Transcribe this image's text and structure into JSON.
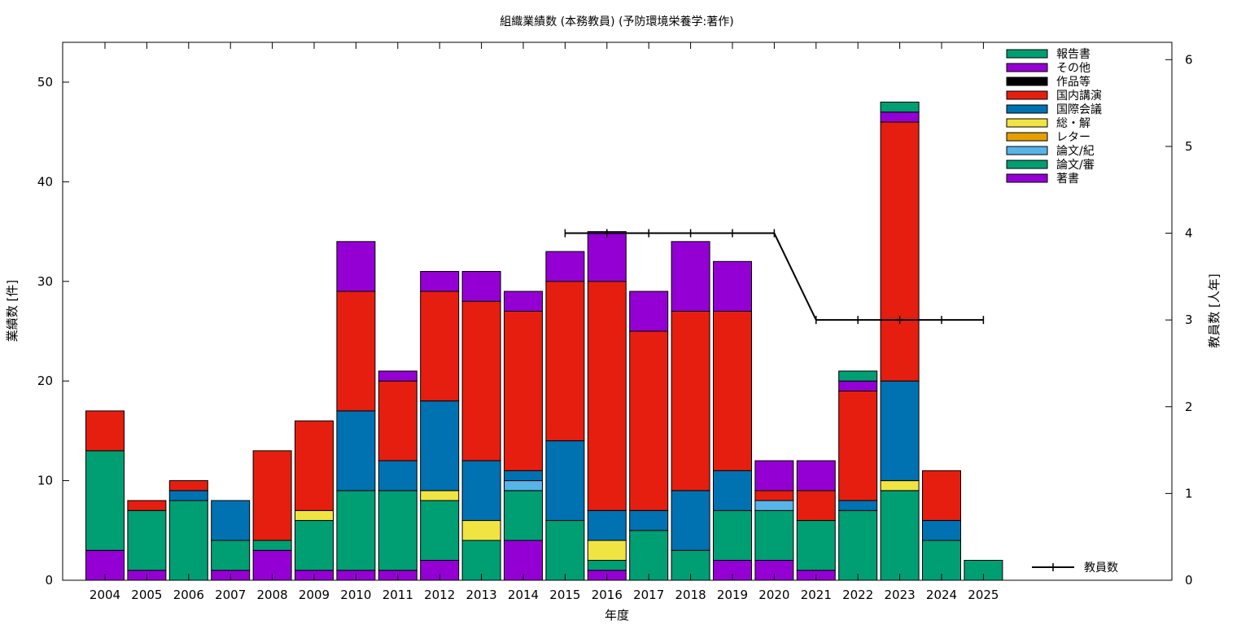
{
  "chart_data": {
    "type": "bar",
    "stacked": true,
    "title": "組織業績数 (本務教員) (予防環境栄養学:著作)",
    "xlabel": "年度",
    "ylabel": "業績数 [件]",
    "y2label": "教員数 [人年]",
    "ylim": [
      0,
      54
    ],
    "y2lim": [
      0,
      6.2
    ],
    "yticks": [
      0,
      10,
      20,
      30,
      40,
      50
    ],
    "y2ticks": [
      0,
      1,
      2,
      3,
      4,
      5,
      6
    ],
    "grid": false,
    "legend_position": "top-right",
    "categories": [
      "2004",
      "2005",
      "2006",
      "2007",
      "2008",
      "2009",
      "2010",
      "2011",
      "2012",
      "2013",
      "2014",
      "2015",
      "2016",
      "2017",
      "2018",
      "2019",
      "2020",
      "2021",
      "2022",
      "2023",
      "2024",
      "2025"
    ],
    "series": [
      {
        "name": "著書",
        "color": "#9400d3",
        "values": [
          3,
          1,
          0,
          1,
          3,
          1,
          1,
          1,
          2,
          0,
          4,
          0,
          1,
          0,
          0,
          2,
          2,
          1,
          0,
          0,
          0,
          0
        ]
      },
      {
        "name": "論文/審",
        "color": "#009e73",
        "values": [
          10,
          6,
          8,
          3,
          1,
          5,
          8,
          8,
          6,
          4,
          5,
          6,
          1,
          5,
          3,
          5,
          5,
          5,
          7,
          9,
          4,
          2
        ]
      },
      {
        "name": "論文/紀",
        "color": "#56b4e9",
        "values": [
          0,
          0,
          0,
          0,
          0,
          0,
          0,
          0,
          0,
          0,
          1,
          0,
          0,
          0,
          0,
          0,
          1,
          0,
          0,
          0,
          0,
          0
        ]
      },
      {
        "name": "レター",
        "color": "#e69f00",
        "values": [
          0,
          0,
          0,
          0,
          0,
          0,
          0,
          0,
          0,
          0,
          0,
          0,
          0,
          0,
          0,
          0,
          0,
          0,
          0,
          0,
          0,
          0
        ]
      },
      {
        "name": "総・解",
        "color": "#f0e442",
        "values": [
          0,
          0,
          0,
          0,
          0,
          1,
          0,
          0,
          1,
          2,
          0,
          0,
          2,
          0,
          0,
          0,
          0,
          0,
          0,
          1,
          0,
          0
        ]
      },
      {
        "name": "国際会議",
        "color": "#0072b2",
        "values": [
          0,
          0,
          1,
          4,
          0,
          0,
          8,
          3,
          9,
          6,
          1,
          8,
          3,
          2,
          6,
          4,
          0,
          0,
          1,
          10,
          2,
          0
        ]
      },
      {
        "name": "国内講演",
        "color": "#e51e10",
        "values": [
          4,
          1,
          1,
          0,
          9,
          9,
          12,
          8,
          11,
          16,
          16,
          16,
          23,
          18,
          18,
          16,
          1,
          3,
          11,
          26,
          5,
          0
        ]
      },
      {
        "name": "作品等",
        "color": "#000000",
        "values": [
          0,
          0,
          0,
          0,
          0,
          0,
          0,
          0,
          0,
          0,
          0,
          0,
          0,
          0,
          0,
          0,
          0,
          0,
          0,
          0,
          0,
          0
        ]
      },
      {
        "name": "その他",
        "color": "#9400d3",
        "values": [
          0,
          0,
          0,
          0,
          0,
          0,
          5,
          1,
          2,
          3,
          2,
          3,
          5,
          4,
          7,
          5,
          3,
          3,
          1,
          1,
          0,
          0
        ]
      },
      {
        "name": "報告書",
        "color": "#009e73",
        "values": [
          0,
          0,
          0,
          0,
          0,
          0,
          0,
          0,
          0,
          0,
          0,
          0,
          0,
          0,
          0,
          0,
          0,
          0,
          1,
          1,
          0,
          0
        ]
      }
    ],
    "line_series": {
      "name": "教員数",
      "axis": "y2",
      "color": "#000000",
      "x": [
        "2015",
        "2016",
        "2017",
        "2018",
        "2019",
        "2020",
        "2021",
        "2022",
        "2023",
        "2024",
        "2025"
      ],
      "values": [
        4,
        4,
        4,
        4,
        4,
        4,
        3,
        3,
        3,
        3,
        3
      ]
    },
    "legend_order": [
      "報告書",
      "その他",
      "作品等",
      "国内講演",
      "国際会議",
      "総・解",
      "レター",
      "論文/紀",
      "論文/審",
      "著書"
    ]
  }
}
